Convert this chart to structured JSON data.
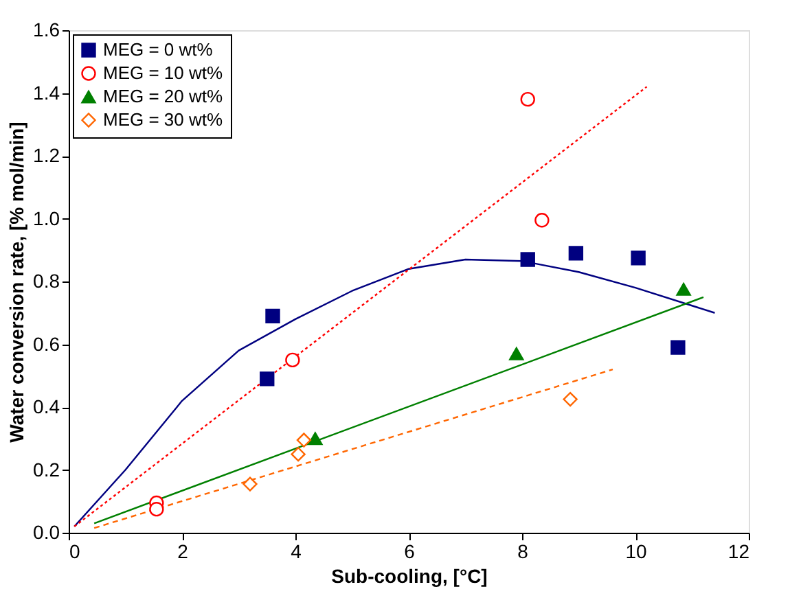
{
  "chart_data": {
    "type": "scatter",
    "xlabel": "Sub-cooling, [°C]",
    "ylabel": "Water conversion rate, [% mol/min]",
    "xlim": [
      0,
      12
    ],
    "xticks": [
      0,
      2,
      4,
      6,
      8,
      10,
      12
    ],
    "ylim": [
      0,
      1.6
    ],
    "yticks": [
      {
        "value": 0,
        "label": "0.0"
      },
      {
        "value": 0.2,
        "label": "0.2"
      },
      {
        "value": 0.4,
        "label": "0.4"
      },
      {
        "value": 0.6,
        "label": "0.6"
      },
      {
        "value": 0.8,
        "label": "0.8"
      },
      {
        "value": 1.0,
        "label": "1.0"
      },
      {
        "value": 1.2,
        "label": "1.2"
      },
      {
        "value": 1.4,
        "label": "1.4"
      },
      {
        "value": 1.6,
        "label": "1.6"
      }
    ],
    "grid": false,
    "legend": "top left",
    "series": [
      {
        "name": "MEG = 0 wt%",
        "marker": "square",
        "color": "#000080",
        "x": [
          3.5,
          3.6,
          8.1,
          8.95,
          10.05,
          10.75
        ],
        "values": [
          0.49,
          0.69,
          0.87,
          0.89,
          0.875,
          0.59
        ]
      },
      {
        "name": "MEG = 10 wt%",
        "marker": "circle",
        "color": "#ff0000",
        "x": [
          1.55,
          1.55,
          3.95,
          8.1,
          8.35
        ],
        "values": [
          0.095,
          0.075,
          0.55,
          1.38,
          0.995
        ]
      },
      {
        "name": "MEG = 20 wt%",
        "marker": "triangle",
        "color": "#008000",
        "x": [
          4.35,
          7.9,
          10.85
        ],
        "values": [
          0.3,
          0.57,
          0.775
        ]
      },
      {
        "name": "MEG = 30 wt%",
        "marker": "diamond",
        "color": "#ff6600",
        "x": [
          3.2,
          4.05,
          4.15,
          8.85
        ],
        "values": [
          0.155,
          0.25,
          0.295,
          0.425
        ]
      },
      {
        "type": "line",
        "line_style": "solid",
        "color": "#000080",
        "x": [
          0.1,
          1,
          2,
          3,
          4,
          5,
          6,
          7,
          8,
          9,
          10,
          11.4
        ],
        "values": [
          0.02,
          0.2,
          0.42,
          0.58,
          0.68,
          0.77,
          0.84,
          0.87,
          0.865,
          0.83,
          0.78,
          0.7
        ]
      },
      {
        "type": "line",
        "line_style": "dotted",
        "color": "#ff0000",
        "x": [
          0.1,
          10.2
        ],
        "values": [
          0.02,
          1.42
        ]
      },
      {
        "type": "line",
        "line_style": "solid",
        "color": "#008000",
        "x": [
          0.45,
          11.2
        ],
        "values": [
          0.03,
          0.75
        ]
      },
      {
        "type": "line",
        "line_style": "dashed",
        "color": "#ff6600",
        "x": [
          0.45,
          9.6
        ],
        "values": [
          0.015,
          0.52
        ]
      }
    ]
  }
}
